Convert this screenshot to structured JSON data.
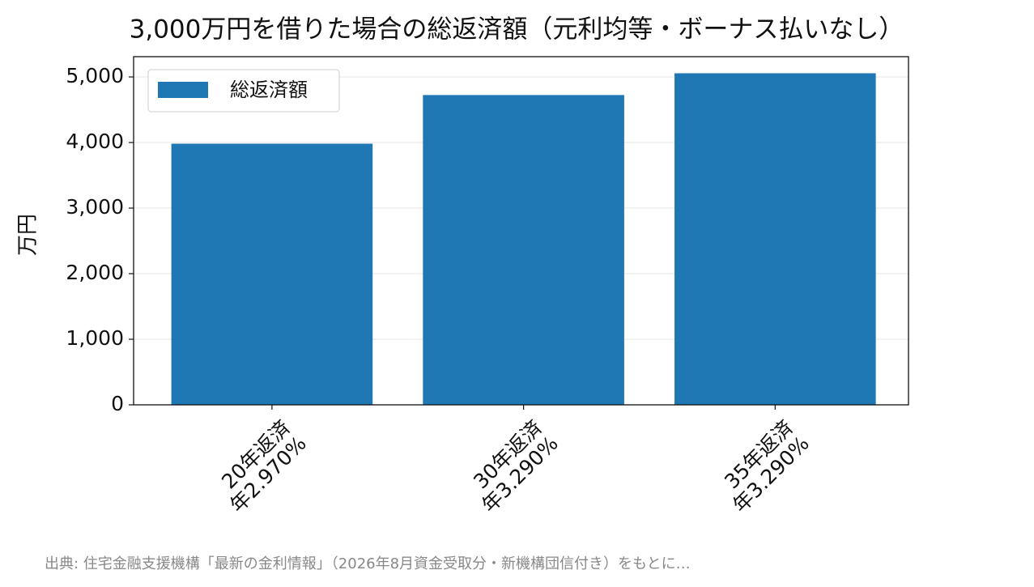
{
  "chart_data": {
    "type": "bar",
    "title": "3,000万円を借りた場合の総返済額（元利均等・ボーナス払いなし）",
    "ylabel": "万円",
    "categories": [
      "20年返済\n年2.970%",
      "30年返済\n年3.290%",
      "35年返済\n年3.290%"
    ],
    "series": [
      {
        "name": "総返済額",
        "color": "#1f77b4",
        "values": [
          3982,
          4724,
          5056
        ]
      }
    ],
    "ylim": [
      0,
      5309
    ],
    "yticks": [
      0,
      {
        "value": 1000,
        "label": "1,000"
      },
      {
        "value": 2000,
        "label": "2,000"
      },
      {
        "value": 3000,
        "label": "3,000"
      },
      {
        "value": 4000,
        "label": "4,000"
      },
      {
        "value": 5000,
        "label": "5,000"
      }
    ],
    "grid": true,
    "legend": "upper left",
    "source": "出典: 住宅金融支援機構「最新の金利情報」（2026年8月資金受取分・新機構団信付き）をもとに…"
  }
}
